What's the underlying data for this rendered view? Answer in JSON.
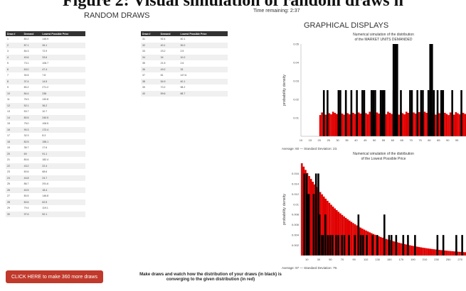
{
  "figure_caption": "Figure 2: Visual simulation of random draws n",
  "random_draws_title": "RANDOM DRAWS",
  "time_remaining": "Time remaining: 2:37",
  "graphical_title": "GRAPHICAL DISPLAYS",
  "table": {
    "headers": [
      "Draw #",
      "Demand",
      "Lowest Possible Price"
    ],
    "rows": [
      [
        "1",
        "80.2",
        "145.9"
      ],
      [
        "2",
        "87.1",
        "26.1"
      ],
      [
        "3",
        "84.3",
        "72.9"
      ],
      [
        "4",
        "40.6",
        "33.6"
      ],
      [
        "5",
        "73.1",
        "106.7"
      ],
      [
        "6",
        "63.0",
        "47.4"
      ],
      [
        "7",
        "30.5",
        "7.8"
      ],
      [
        "8",
        "37.4",
        "14.5"
      ],
      [
        "9",
        "80.2",
        "271.2"
      ],
      [
        "10",
        "84.4",
        "236"
      ],
      [
        "11",
        "76.3",
        "132.8"
      ],
      [
        "12",
        "52.1",
        "36.2"
      ],
      [
        "13",
        "53.7",
        "10.7"
      ],
      [
        "14",
        "80.5",
        "240.5"
      ],
      [
        "15",
        "75.0",
        "106.5"
      ],
      [
        "16",
        "90.3",
        "172.4"
      ],
      [
        "17",
        "32.3",
        "8.3"
      ],
      [
        "18",
        "82.5",
        "155.1"
      ],
      [
        "19",
        "35.7",
        "17.6"
      ],
      [
        "20",
        "69",
        "91.1"
      ],
      [
        "21",
        "80.6",
        "182.4"
      ],
      [
        "22",
        "43.2",
        "22.4"
      ],
      [
        "23",
        "60.6",
        "68.6"
      ],
      [
        "24",
        "44.8",
        "24.7"
      ],
      [
        "25",
        "86.7",
        "291.6"
      ],
      [
        "26",
        "40.5",
        "18.4"
      ],
      [
        "27",
        "80.5",
        "146.8"
      ],
      [
        "28",
        "60.6",
        "62.5"
      ],
      [
        "29",
        "79.4",
        "119.1"
      ],
      [
        "30",
        "97.6",
        "52.1"
      ],
      [
        "31",
        "92.4",
        "40.1"
      ],
      [
        "32",
        "40.1",
        "30.0"
      ],
      [
        "33",
        "23.2",
        "2.5"
      ],
      [
        "34",
        "34",
        "10.0"
      ],
      [
        "35",
        "21.5",
        "2.6"
      ],
      [
        "36",
        "49.2",
        "33"
      ],
      [
        "37",
        "81",
        "147.6"
      ],
      [
        "38",
        "54.9",
        "40.1"
      ],
      [
        "39",
        "70.2",
        "98.2"
      ],
      [
        "40",
        "59.6",
        "68.7"
      ]
    ]
  },
  "more_draws_button": "CLICK HERE to make 360 more draws",
  "instructions": "Make draws and watch how the distribution of your draws (in black) is converging to the given distribution (in red)",
  "colors": {
    "button": "#c0392b",
    "draws": "#000000",
    "theoretical": "#e00000"
  },
  "chart_data": [
    {
      "type": "bar",
      "title": [
        "Numerical simulation of the distribution",
        "of the MARKET UNITS DEMANDED"
      ],
      "xlabel": "",
      "ylabel": "probability density",
      "xlim": [
        10,
        100
      ],
      "ylim": [
        0,
        0.05
      ],
      "xticks": [
        10,
        15,
        20,
        25,
        30,
        35,
        40,
        45,
        50,
        55,
        60,
        65,
        70,
        75,
        80,
        85,
        90,
        95
      ],
      "yticks": [
        0.01,
        0.02,
        0.03,
        0.04,
        0.05
      ],
      "theoretical_level": 0.0125,
      "draw_bars": [
        {
          "x": 22,
          "y": 0.025
        },
        {
          "x": 24,
          "y": 0.025
        },
        {
          "x": 30,
          "y": 0.025
        },
        {
          "x": 31,
          "y": 0.025
        },
        {
          "x": 34,
          "y": 0.025
        },
        {
          "x": 37,
          "y": 0.025
        },
        {
          "x": 40,
          "y": 0.025
        },
        {
          "x": 43,
          "y": 0.025
        },
        {
          "x": 44,
          "y": 0.025
        },
        {
          "x": 48,
          "y": 0.025
        },
        {
          "x": 49,
          "y": 0.025
        },
        {
          "x": 50,
          "y": 0.025
        },
        {
          "x": 53,
          "y": 0.025
        },
        {
          "x": 54,
          "y": 0.025
        },
        {
          "x": 55,
          "y": 0.025
        },
        {
          "x": 60,
          "y": 0.025
        },
        {
          "x": 64,
          "y": 0.025
        },
        {
          "x": 69,
          "y": 0.025
        },
        {
          "x": 70,
          "y": 0.025
        },
        {
          "x": 73,
          "y": 0.025
        },
        {
          "x": 75,
          "y": 0.025
        },
        {
          "x": 76,
          "y": 0.025
        },
        {
          "x": 79,
          "y": 0.025
        },
        {
          "x": 82,
          "y": 0.025
        },
        {
          "x": 84,
          "y": 0.025
        },
        {
          "x": 86,
          "y": 0.025
        },
        {
          "x": 87,
          "y": 0.025
        },
        {
          "x": 92,
          "y": 0.025
        },
        {
          "x": 97,
          "y": 0.025
        },
        {
          "x": 80,
          "y": 0.05
        },
        {
          "x": 81,
          "y": 0.05
        },
        {
          "x": 60,
          "y": 0.05
        },
        {
          "x": 61,
          "y": 0.05
        },
        {
          "x": 62,
          "y": 0.05
        }
      ],
      "stats": "Average: 60 — Standard Deviation: 23."
    },
    {
      "type": "bar",
      "title": [
        "Numerical simulation of the distribution",
        "of the Lowest Possible Price"
      ],
      "xlabel": "",
      "ylabel": "probability density",
      "xlim": [
        0,
        280
      ],
      "ylim": [
        0,
        0.018
      ],
      "xticks": [
        10,
        30,
        50,
        70,
        90,
        110,
        130,
        150,
        170,
        190,
        210,
        230,
        250,
        270
      ],
      "yticks": [
        0.002,
        0.004,
        0.006,
        0.008,
        0.01,
        0.012,
        0.014,
        0.016
      ],
      "theoretical_decay": {
        "start": 0.018,
        "rate": 0.012
      },
      "draw_bars": [
        {
          "x": 4,
          "y": 0.016
        },
        {
          "x": 8,
          "y": 0.016
        },
        {
          "x": 10,
          "y": 0.012
        },
        {
          "x": 12,
          "y": 0.012
        },
        {
          "x": 20,
          "y": 0.012
        },
        {
          "x": 24,
          "y": 0.016
        },
        {
          "x": 28,
          "y": 0.016
        },
        {
          "x": 30,
          "y": 0.008
        },
        {
          "x": 34,
          "y": 0.004
        },
        {
          "x": 36,
          "y": 0.004
        },
        {
          "x": 40,
          "y": 0.008
        },
        {
          "x": 44,
          "y": 0.004
        },
        {
          "x": 48,
          "y": 0.004
        },
        {
          "x": 52,
          "y": 0.004
        },
        {
          "x": 58,
          "y": 0.004
        },
        {
          "x": 62,
          "y": 0.004
        },
        {
          "x": 68,
          "y": 0.004
        },
        {
          "x": 72,
          "y": 0.004
        },
        {
          "x": 80,
          "y": 0.004
        },
        {
          "x": 90,
          "y": 0.004
        },
        {
          "x": 96,
          "y": 0.008
        },
        {
          "x": 100,
          "y": 0.004
        },
        {
          "x": 104,
          "y": 0.004
        },
        {
          "x": 110,
          "y": 0.004
        },
        {
          "x": 120,
          "y": 0.004
        },
        {
          "x": 128,
          "y": 0.004
        },
        {
          "x": 140,
          "y": 0.008
        },
        {
          "x": 148,
          "y": 0.004
        },
        {
          "x": 152,
          "y": 0.004
        },
        {
          "x": 160,
          "y": 0.004
        },
        {
          "x": 172,
          "y": 0.004
        },
        {
          "x": 180,
          "y": 0.004
        },
        {
          "x": 192,
          "y": 0.004
        },
        {
          "x": 230,
          "y": 0.004
        },
        {
          "x": 240,
          "y": 0.004
        },
        {
          "x": 262,
          "y": 0.004
        },
        {
          "x": 272,
          "y": 0.004
        }
      ],
      "stats": "Average: 97 — Standard Deviation: 79."
    }
  ]
}
